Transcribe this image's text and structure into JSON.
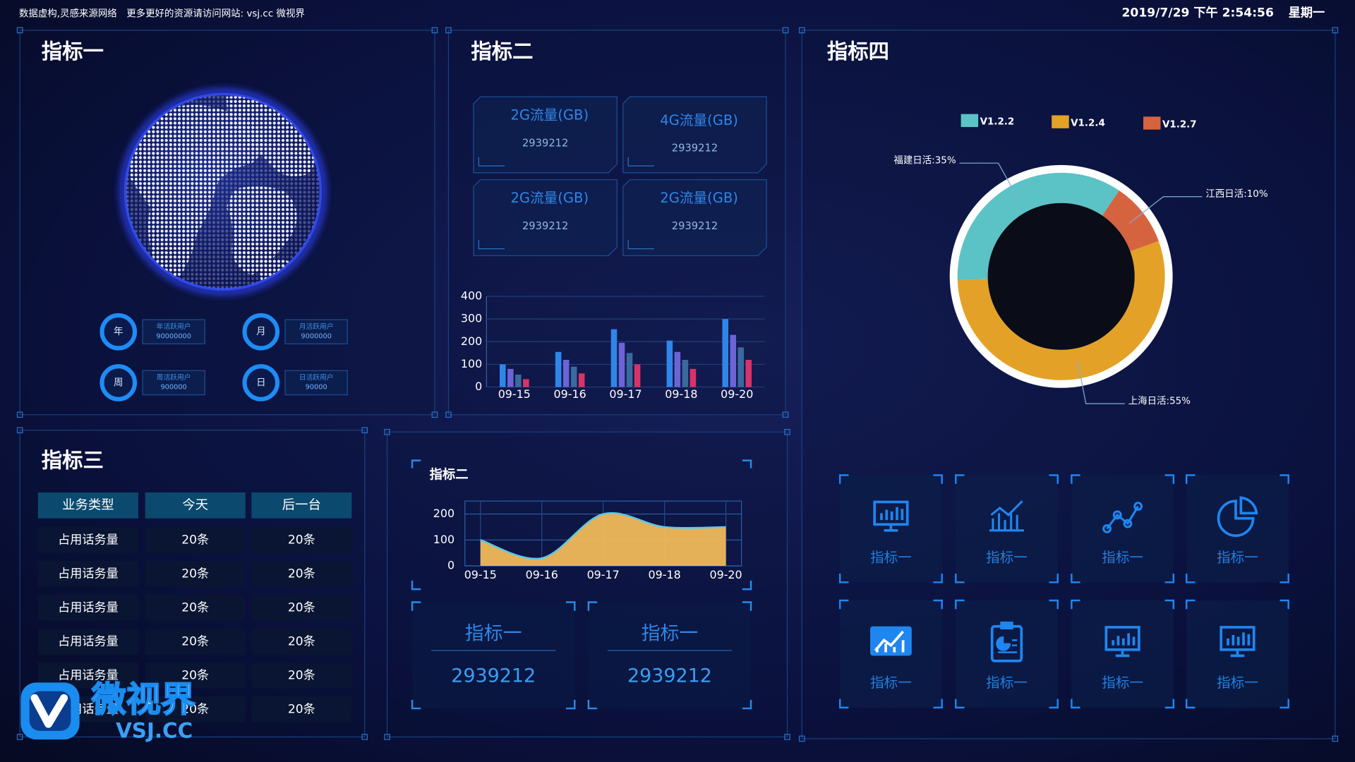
{
  "header": {
    "notice": "数据虚构,灵感来源网络　更多更好的资源请访问网站: vsj.cc 微视界",
    "datetime": "2019/7/29 下午 2:54:56",
    "weekday": "星期一"
  },
  "panel1": {
    "title": "指标一",
    "stats": [
      {
        "badge": "年",
        "label": "年活跃用户",
        "value": "90000000"
      },
      {
        "badge": "月",
        "label": "月活跃用户",
        "value": "9000000"
      },
      {
        "badge": "周",
        "label": "周活跃用户",
        "value": "900000"
      },
      {
        "badge": "日",
        "label": "日活跃用户",
        "value": "90000"
      }
    ]
  },
  "panel2": {
    "title": "指标二",
    "cards": [
      {
        "label": "2G流量(GB)",
        "value": "2939212"
      },
      {
        "label": "4G流量(GB)",
        "value": "2939212"
      },
      {
        "label": "2G流量(GB)",
        "value": "2939212"
      },
      {
        "label": "2G流量(GB)",
        "value": "2939212"
      }
    ]
  },
  "panel3": {
    "title": "指标三",
    "table": {
      "header": [
        "业务类型",
        "今天",
        "后一台"
      ],
      "rows": [
        [
          "占用话务量",
          "20条",
          "20条"
        ],
        [
          "占用话务量",
          "20条",
          "20条"
        ],
        [
          "占用话务量",
          "20条",
          "20条"
        ],
        [
          "占用话务量",
          "20条",
          "20条"
        ],
        [
          "占用话务量",
          "20条",
          "20条"
        ],
        [
          "占用话务量",
          "20条",
          "20条"
        ]
      ]
    }
  },
  "panel5": {
    "cards": [
      {
        "label": "指标一",
        "value": "2939212"
      },
      {
        "label": "指标一",
        "value": "2939212"
      }
    ]
  },
  "panel4": {
    "title": "指标四",
    "tiles": [
      "指标一",
      "指标一",
      "指标一",
      "指标一",
      "指标一",
      "指标一",
      "指标一",
      "指标一"
    ]
  },
  "watermark": {
    "brand": "微视界",
    "url": "VSJ.CC"
  },
  "chart_data": [
    {
      "type": "bar",
      "categories": [
        "09-15",
        "09-16",
        "09-17",
        "09-18",
        "09-20"
      ],
      "series": [
        {
          "color": "#2f86e8",
          "values": [
            100,
            155,
            255,
            205,
            300
          ]
        },
        {
          "color": "#6b63d6",
          "values": [
            80,
            120,
            195,
            155,
            230
          ]
        },
        {
          "color": "#3a6a9e",
          "values": [
            55,
            90,
            150,
            120,
            175
          ]
        },
        {
          "color": "#d8336a",
          "values": [
            35,
            60,
            100,
            80,
            120
          ]
        }
      ],
      "ylim": [
        0,
        400
      ],
      "yticks": [
        0,
        100,
        200,
        300,
        400
      ],
      "grid": true
    },
    {
      "type": "area",
      "title": "指标二",
      "categories": [
        "09-15",
        "09-16",
        "09-17",
        "09-18",
        "09-20"
      ],
      "values": [
        100,
        30,
        200,
        150,
        150
      ],
      "color": "#f0b95a",
      "ylim": [
        0,
        250
      ],
      "yticks": [
        0,
        100,
        200
      ],
      "grid": true
    },
    {
      "type": "pie",
      "categories": [
        "V1.2.2",
        "V1.2.4",
        "V1.2.7"
      ],
      "values": [
        35,
        55,
        10
      ],
      "value_labels": [
        "福建日活:35%",
        "上海日活:55%",
        "江西日活:10%"
      ],
      "colors": [
        "#5bc2c6",
        "#e3a227",
        "#d5633f"
      ],
      "legend": "top"
    }
  ]
}
